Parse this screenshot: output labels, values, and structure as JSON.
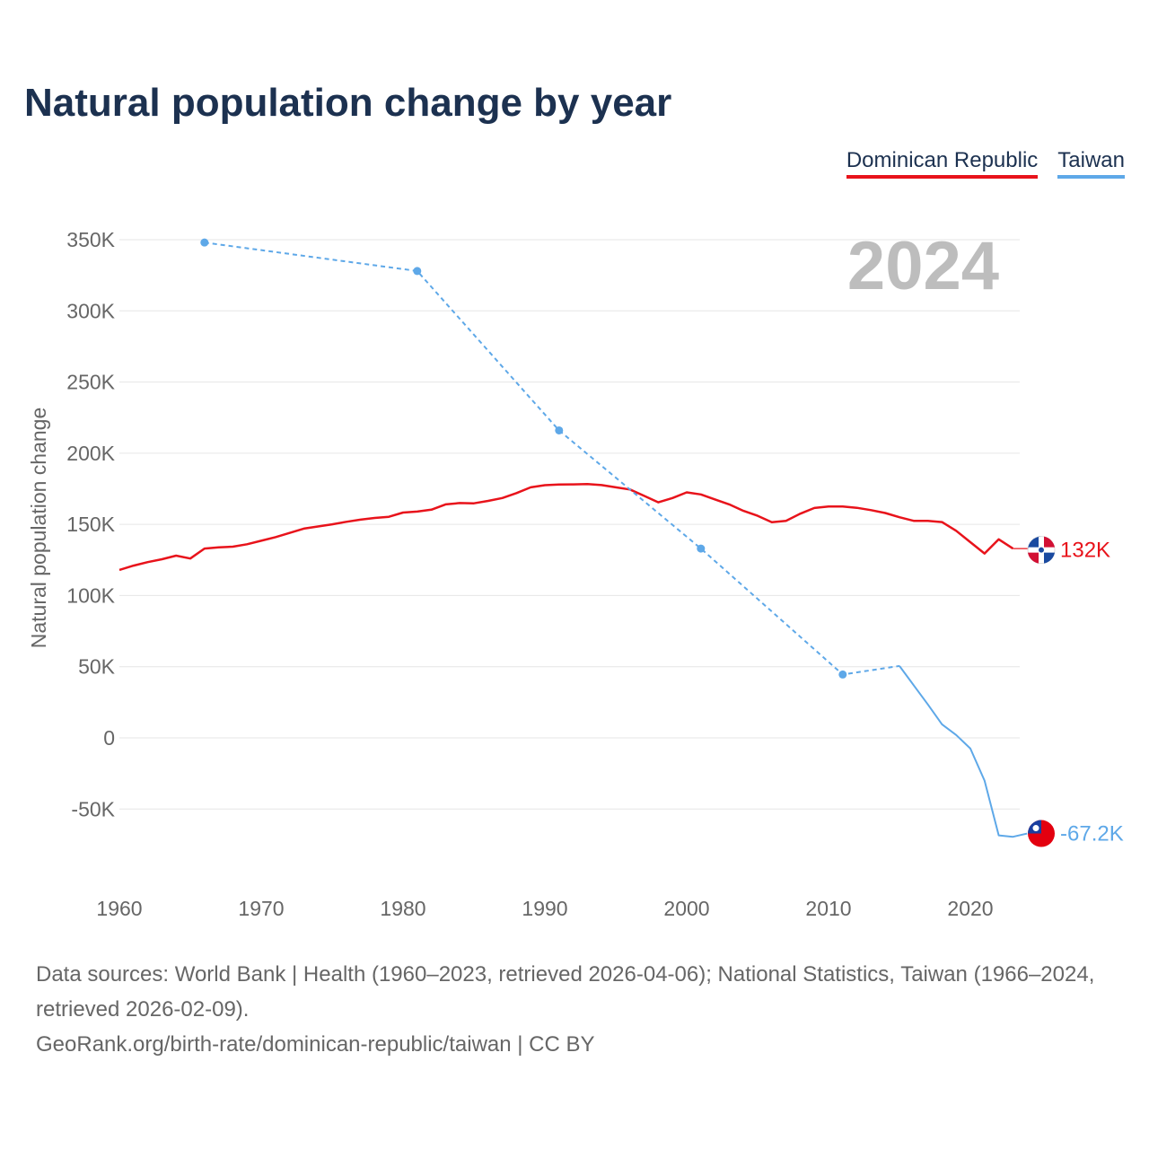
{
  "title": "Natural population change by year",
  "legend": [
    {
      "name": "Dominican Republic",
      "color": "#e8131b"
    },
    {
      "name": "Taiwan",
      "color": "#5ea8e8"
    }
  ],
  "chart_data": {
    "type": "line",
    "title": "Natural population change by year",
    "ylabel": "Natural population change",
    "xlabel": "",
    "year_watermark": "2024",
    "xlim": [
      1960,
      2025
    ],
    "ylim": [
      -75000,
      350000
    ],
    "x_ticks": [
      1960,
      1970,
      1980,
      1990,
      2000,
      2010,
      2020
    ],
    "y_ticks": [
      {
        "value": 350000,
        "label": "350K"
      },
      {
        "value": 300000,
        "label": "300K"
      },
      {
        "value": 250000,
        "label": "250K"
      },
      {
        "value": 200000,
        "label": "200K"
      },
      {
        "value": 150000,
        "label": "150K"
      },
      {
        "value": 100000,
        "label": "100K"
      },
      {
        "value": 50000,
        "label": "50K"
      },
      {
        "value": 0,
        "label": "0"
      },
      {
        "value": -50000,
        "label": "-50K"
      }
    ],
    "grid": true,
    "series": [
      {
        "name": "Dominican Republic",
        "color": "#e8131b",
        "end_label": "132K",
        "end_value": 132000,
        "points": [
          [
            1960,
            118000
          ],
          [
            1961,
            121000
          ],
          [
            1962,
            123500
          ],
          [
            1963,
            125500
          ],
          [
            1964,
            128000
          ],
          [
            1965,
            126000
          ],
          [
            1966,
            133000
          ],
          [
            1967,
            133800
          ],
          [
            1968,
            134300
          ],
          [
            1969,
            136000
          ],
          [
            1970,
            138500
          ],
          [
            1971,
            141000
          ],
          [
            1972,
            144000
          ],
          [
            1973,
            147000
          ],
          [
            1974,
            148500
          ],
          [
            1975,
            150000
          ],
          [
            1976,
            151800
          ],
          [
            1977,
            153300
          ],
          [
            1978,
            154500
          ],
          [
            1979,
            155300
          ],
          [
            1980,
            158300
          ],
          [
            1981,
            159000
          ],
          [
            1982,
            160300
          ],
          [
            1983,
            164000
          ],
          [
            1984,
            165000
          ],
          [
            1985,
            164800
          ],
          [
            1986,
            166500
          ],
          [
            1987,
            168500
          ],
          [
            1988,
            172000
          ],
          [
            1989,
            176000
          ],
          [
            1990,
            177500
          ],
          [
            1991,
            178000
          ],
          [
            1992,
            178100
          ],
          [
            1993,
            178300
          ],
          [
            1994,
            177600
          ],
          [
            1995,
            176000
          ],
          [
            1996,
            174500
          ],
          [
            1997,
            170000
          ],
          [
            1998,
            165500
          ],
          [
            1999,
            168500
          ],
          [
            2000,
            172500
          ],
          [
            2001,
            171000
          ],
          [
            2002,
            167500
          ],
          [
            2003,
            164000
          ],
          [
            2004,
            159500
          ],
          [
            2005,
            156000
          ],
          [
            2006,
            151500
          ],
          [
            2007,
            152500
          ],
          [
            2008,
            157500
          ],
          [
            2009,
            161500
          ],
          [
            2010,
            162600
          ],
          [
            2011,
            162600
          ],
          [
            2012,
            161600
          ],
          [
            2013,
            160000
          ],
          [
            2014,
            158000
          ],
          [
            2015,
            155000
          ],
          [
            2016,
            152500
          ],
          [
            2017,
            152500
          ],
          [
            2018,
            151600
          ],
          [
            2019,
            145500
          ],
          [
            2020,
            137500
          ],
          [
            2021,
            129500
          ],
          [
            2022,
            139500
          ],
          [
            2023,
            133000
          ],
          [
            2024,
            133000
          ],
          [
            2025,
            132000
          ]
        ]
      },
      {
        "name": "Taiwan",
        "color": "#5ea8e8",
        "end_label": "-67.2K",
        "end_value": -67200,
        "sparse_points": [
          [
            1966,
            348000
          ],
          [
            1981,
            328000
          ],
          [
            1991,
            216000
          ],
          [
            2001,
            133000
          ],
          [
            2011,
            44500
          ]
        ],
        "dense_points": [
          [
            2015,
            50500
          ],
          [
            2016,
            37000
          ],
          [
            2017,
            23500
          ],
          [
            2018,
            9500
          ],
          [
            2019,
            2000
          ],
          [
            2020,
            -7500
          ],
          [
            2021,
            -30000
          ],
          [
            2022,
            -68500
          ],
          [
            2023,
            -69500
          ],
          [
            2024,
            -67200
          ],
          [
            2025,
            -67200
          ]
        ]
      }
    ]
  },
  "footer": {
    "sources": "Data sources: World Bank | Health (1960–2023, retrieved 2026-04-06); National Statistics, Taiwan (1966–2024, retrieved 2026-02-09).",
    "credit": "GeoRank.org/birth-rate/dominican-republic/taiwan | CC BY"
  }
}
